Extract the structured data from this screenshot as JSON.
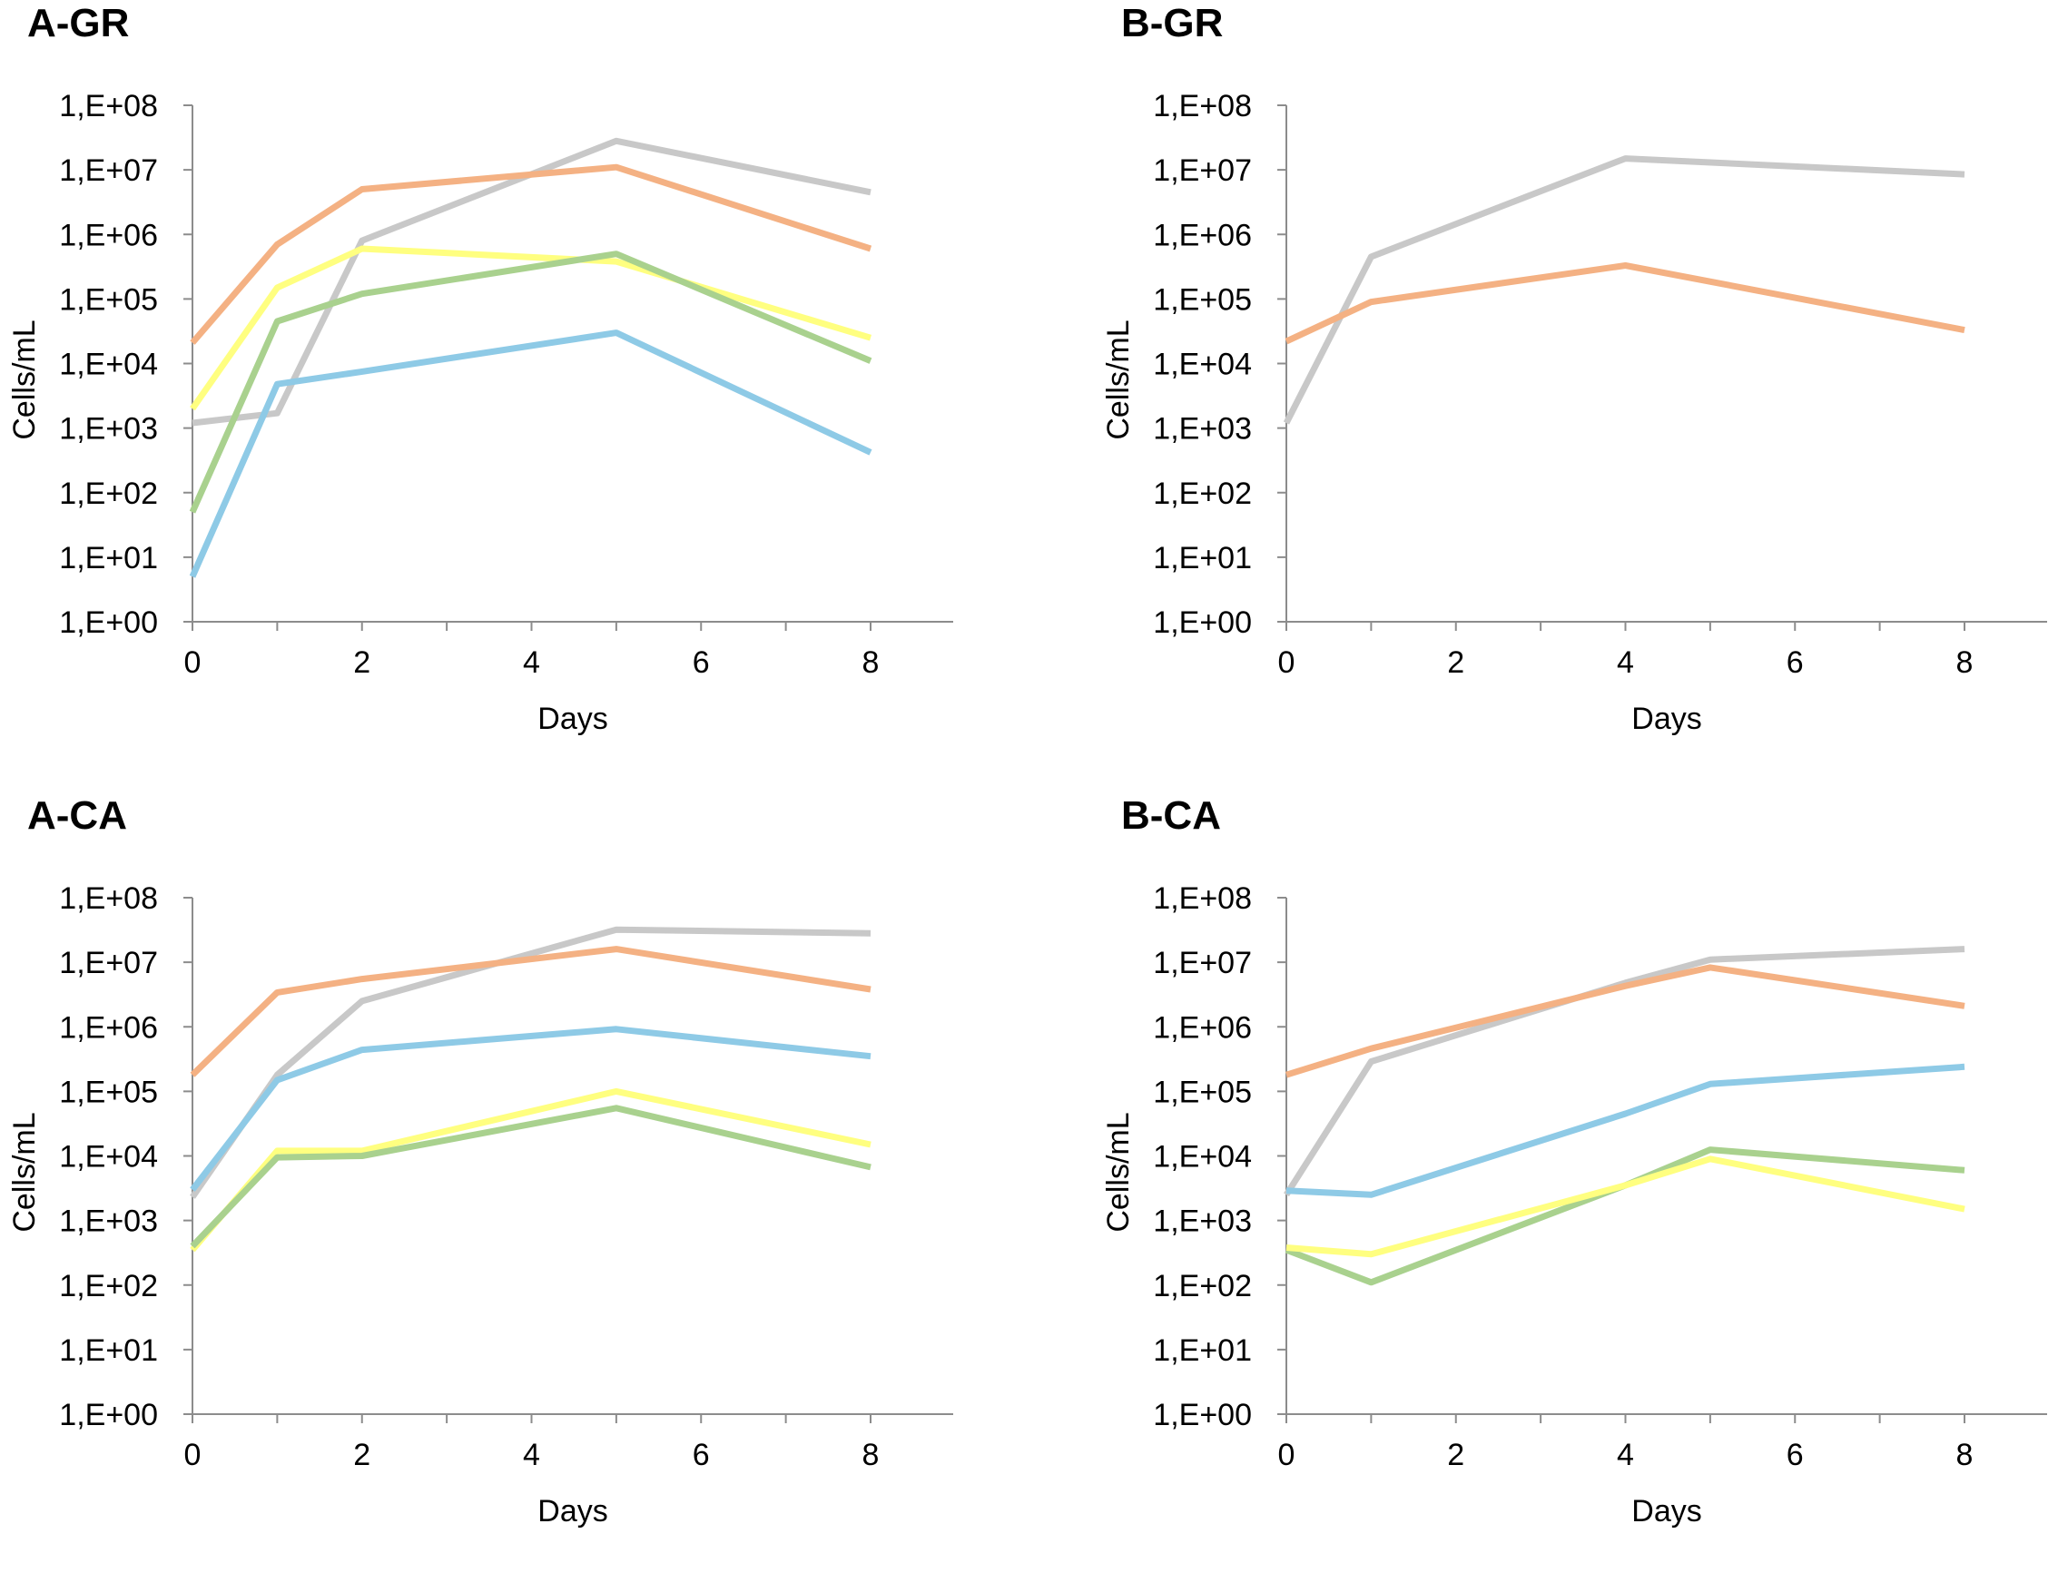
{
  "colors": {
    "gray": "#c8c8c8",
    "orange": "#f4b183",
    "yellow": "#ffff80",
    "green": "#a9d18e",
    "blue": "#8ecae6"
  },
  "chart_data": [
    {
      "id": "A-GR",
      "type": "line",
      "title": "A-GR",
      "xlabel": "Days",
      "ylabel": "Cells/mL",
      "yscale": "log",
      "ylim": [
        1,
        100000000
      ],
      "xlim": [
        0,
        9
      ],
      "xticks": [
        "0",
        "2",
        "4",
        "6",
        "8"
      ],
      "yticks": [
        "1,E+00",
        "1,E+01",
        "1,E+02",
        "1,E+03",
        "1,E+04",
        "1,E+05",
        "1,E+06",
        "1,E+07",
        "1,E+08"
      ],
      "series": [
        {
          "name": "gray",
          "x": [
            0,
            1,
            2,
            5,
            8
          ],
          "values": [
            1200,
            1700,
            800000,
            28000000,
            4500000
          ]
        },
        {
          "name": "orange",
          "x": [
            0,
            1,
            2,
            5,
            8
          ],
          "values": [
            21000,
            700000,
            5000000,
            11000000,
            600000
          ]
        },
        {
          "name": "yellow",
          "x": [
            0,
            1,
            2,
            5,
            8
          ],
          "values": [
            2000,
            150000,
            600000,
            380000,
            25000
          ]
        },
        {
          "name": "green",
          "x": [
            0,
            1,
            2,
            5,
            8
          ],
          "values": [
            50,
            45000,
            120000,
            500000,
            11000
          ]
        },
        {
          "name": "blue",
          "x": [
            0,
            1,
            2,
            5,
            8
          ],
          "values": [
            5,
            4800,
            7500,
            30000,
            420
          ]
        }
      ]
    },
    {
      "id": "B-GR",
      "type": "line",
      "title": "B-GR",
      "xlabel": "Days",
      "ylabel": "Cells/mL",
      "yscale": "log",
      "ylim": [
        1,
        100000000
      ],
      "xlim": [
        0,
        9
      ],
      "xticks": [
        "0",
        "2",
        "4",
        "6",
        "8"
      ],
      "yticks": [
        "1,E+00",
        "1,E+01",
        "1,E+02",
        "1,E+03",
        "1,E+04",
        "1,E+05",
        "1,E+06",
        "1,E+07",
        "1,E+08"
      ],
      "series": [
        {
          "name": "gray",
          "x": [
            0,
            1,
            4,
            8
          ],
          "values": [
            1200,
            450000,
            15000000,
            8500000
          ]
        },
        {
          "name": "orange",
          "x": [
            0,
            1,
            4,
            8
          ],
          "values": [
            22000,
            90000,
            330000,
            33000
          ]
        }
      ]
    },
    {
      "id": "A-CA",
      "type": "line",
      "title": "A-CA",
      "xlabel": "Days",
      "ylabel": "Cells/mL",
      "yscale": "log",
      "ylim": [
        1,
        100000000
      ],
      "xlim": [
        0,
        9
      ],
      "xticks": [
        "0",
        "2",
        "4",
        "6",
        "8"
      ],
      "yticks": [
        "1,E+00",
        "1,E+01",
        "1,E+02",
        "1,E+03",
        "1,E+04",
        "1,E+05",
        "1,E+06",
        "1,E+07",
        "1,E+08"
      ],
      "series": [
        {
          "name": "gray",
          "x": [
            0,
            1,
            2,
            5,
            8
          ],
          "values": [
            2300,
            180000,
            2500000,
            32000000,
            28000000
          ]
        },
        {
          "name": "orange",
          "x": [
            0,
            1,
            2,
            5,
            8
          ],
          "values": [
            180000,
            3400000,
            5500000,
            16000000,
            3800000
          ]
        },
        {
          "name": "blue",
          "x": [
            0,
            1,
            2,
            5,
            8
          ],
          "values": [
            3000,
            150000,
            440000,
            920000,
            350000
          ]
        },
        {
          "name": "yellow",
          "x": [
            0,
            1,
            2,
            5,
            8
          ],
          "values": [
            350,
            12000,
            12000,
            100000,
            15000
          ]
        },
        {
          "name": "green",
          "x": [
            0,
            1,
            2,
            5,
            8
          ],
          "values": [
            400,
            9500,
            10000,
            55000,
            6700
          ]
        }
      ]
    },
    {
      "id": "B-CA",
      "type": "line",
      "title": "B-CA",
      "xlabel": "Days",
      "ylabel": "Cells/mL",
      "yscale": "log",
      "ylim": [
        1,
        100000000
      ],
      "xlim": [
        0,
        9
      ],
      "xticks": [
        "0",
        "2",
        "4",
        "6",
        "8"
      ],
      "yticks": [
        "1,E+00",
        "1,E+01",
        "1,E+02",
        "1,E+03",
        "1,E+04",
        "1,E+05",
        "1,E+06",
        "1,E+07",
        "1,E+08"
      ],
      "series": [
        {
          "name": "gray",
          "x": [
            0,
            1,
            4,
            5,
            8
          ],
          "values": [
            2500,
            290000,
            4800000,
            11000000,
            16000000
          ]
        },
        {
          "name": "orange",
          "x": [
            0,
            1,
            4,
            5,
            8
          ],
          "values": [
            180000,
            460000,
            4300000,
            8300000,
            2100000
          ]
        },
        {
          "name": "blue",
          "x": [
            0,
            1,
            4,
            5,
            8
          ],
          "values": [
            2900,
            2500,
            45000,
            130000,
            240000
          ]
        },
        {
          "name": "green",
          "x": [
            0,
            1,
            4,
            5,
            8
          ],
          "values": [
            350,
            110,
            3500,
            12500,
            6000
          ]
        },
        {
          "name": "yellow",
          "x": [
            0,
            1,
            4,
            5,
            8
          ],
          "values": [
            380,
            300,
            3500,
            9000,
            1500
          ]
        }
      ]
    }
  ]
}
